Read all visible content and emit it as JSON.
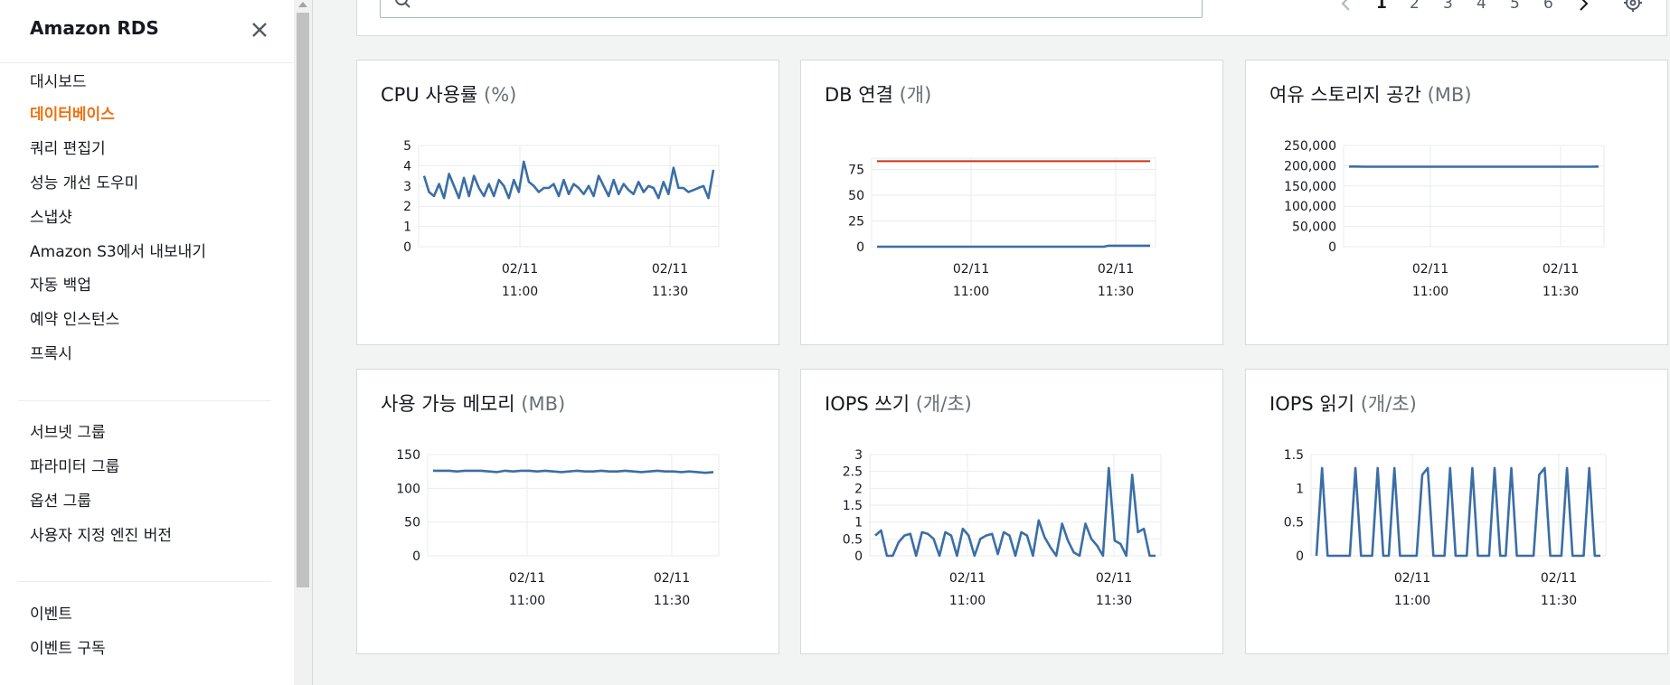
{
  "sidebar": {
    "title": "Amazon RDS",
    "close_icon": "close-icon",
    "groups": [
      [
        {
          "label": "대시보드",
          "active": false
        },
        {
          "label": "데이터베이스",
          "active": true
        },
        {
          "label": "쿼리 편집기",
          "active": false
        },
        {
          "label": "성능 개선 도우미",
          "active": false
        },
        {
          "label": "스냅샷",
          "active": false
        },
        {
          "label": "Amazon S3에서 내보내기",
          "active": false
        },
        {
          "label": "자동 백업",
          "active": false
        },
        {
          "label": "예약 인스턴스",
          "active": false
        },
        {
          "label": "프록시",
          "active": false
        }
      ],
      [
        {
          "label": "서브넷 그룹",
          "active": false
        },
        {
          "label": "파라미터 그룹",
          "active": false
        },
        {
          "label": "옵션 그룹",
          "active": false
        },
        {
          "label": "사용자 지정 엔진 버전",
          "active": false
        }
      ],
      [
        {
          "label": "이벤트",
          "active": false
        },
        {
          "label": "이벤트 구독",
          "active": false
        }
      ]
    ]
  },
  "toolbar": {
    "search_value": "",
    "search_icon": "search-icon",
    "pages": [
      "1",
      "2",
      "3",
      "4",
      "5",
      "6"
    ],
    "current_page": "1",
    "settings_icon": "gear-icon"
  },
  "colors": {
    "accent": "#ec7211",
    "series": "#3b6ea5",
    "threshold": "#d13212",
    "grid": "#eaeded"
  },
  "charts": [
    {
      "title": "CPU 사용률",
      "unit": "(%)",
      "chart_data": {
        "type": "line",
        "y_ticks": [
          "5",
          "4",
          "3",
          "2",
          "1",
          "0"
        ],
        "ylim": [
          0,
          5
        ],
        "x_ticks": [
          {
            "date": "02/11",
            "time": "11:00"
          },
          {
            "date": "02/11",
            "time": "11:30"
          }
        ],
        "series": [
          {
            "values": [
              3.5,
              2.7,
              2.5,
              3.1,
              2.4,
              3.6,
              3.0,
              2.4,
              3.4,
              2.5,
              3.5,
              2.9,
              2.5,
              3.1,
              2.5,
              3.3,
              3.0,
              2.4,
              3.3,
              2.7,
              4.2,
              3.2,
              3.0,
              2.7,
              2.9,
              2.9,
              3.1,
              2.5,
              3.3,
              2.6,
              3.1,
              2.9,
              2.6,
              3.0,
              2.5,
              3.5,
              3.0,
              2.5,
              3.3,
              2.6,
              3.1,
              2.8,
              2.6,
              3.2,
              2.7,
              3.0,
              2.9,
              2.4,
              3.2,
              2.6,
              3.9,
              2.9,
              2.9,
              2.7,
              2.8,
              2.9,
              3.0,
              2.4,
              3.8
            ]
          }
        ]
      }
    },
    {
      "title": "DB 연결",
      "unit": "(개)",
      "chart_data": {
        "type": "line",
        "y_ticks": [
          "75",
          "50",
          "25",
          "0"
        ],
        "ylim": [
          0,
          86
        ],
        "x_ticks": [
          {
            "date": "02/11",
            "time": "11:00"
          },
          {
            "date": "02/11",
            "time": "11:30"
          }
        ],
        "series": [
          {
            "values": [
              0,
              0,
              0,
              0,
              0,
              0,
              0,
              0,
              0,
              0,
              0,
              0,
              0,
              0,
              0,
              0,
              0,
              0,
              0,
              0,
              0,
              0,
              0,
              0,
              0,
              0,
              0,
              0,
              0,
              0,
              0,
              0,
              0,
              0,
              0,
              0,
              0,
              0,
              0,
              0,
              0,
              0,
              0,
              0,
              0,
              0,
              0,
              0,
              0,
              0,
              1,
              1,
              1,
              1,
              1,
              1,
              1,
              1,
              1,
              1
            ]
          },
          {
            "values": [
              83,
              83
            ],
            "threshold": true
          }
        ]
      }
    },
    {
      "title": "여유 스토리지 공간",
      "unit": "(MB)",
      "chart_data": {
        "type": "line",
        "y_ticks": [
          "250,000",
          "200,000",
          "150,000",
          "100,000",
          "50,000",
          "0"
        ],
        "ylim": [
          0,
          250000
        ],
        "x_ticks": [
          {
            "date": "02/11",
            "time": "11:00"
          },
          {
            "date": "02/11",
            "time": "11:30"
          }
        ],
        "series": [
          {
            "values": [
              198000,
              198000,
              197500,
              197500,
              197500,
              197500,
              197500,
              197500,
              197500,
              197500,
              197500,
              197500,
              197500,
              197500,
              197500,
              197500,
              197500,
              197500,
              197500,
              197500,
              197500,
              197500,
              197500,
              197500,
              197500,
              197500,
              197500,
              197500,
              197500,
              197500,
              197500,
              198000
            ]
          }
        ]
      }
    },
    {
      "title": "사용 가능 메모리",
      "unit": "(MB)",
      "chart_data": {
        "type": "line",
        "y_ticks": [
          "150",
          "100",
          "50",
          "0"
        ],
        "ylim": [
          0,
          150
        ],
        "x_ticks": [
          {
            "date": "02/11",
            "time": "11:00"
          },
          {
            "date": "02/11",
            "time": "11:30"
          }
        ],
        "series": [
          {
            "values": [
              126,
              126,
              126,
              125,
              126,
              126,
              126,
              125,
              124,
              126,
              125,
              126,
              126,
              125,
              126,
              125,
              124,
              125,
              126,
              125,
              125,
              126,
              125,
              125,
              126,
              125,
              124,
              125,
              126,
              125,
              125,
              124,
              125,
              124,
              123,
              124
            ]
          }
        ]
      }
    },
    {
      "title": "IOPS 쓰기",
      "unit": "(개/초)",
      "chart_data": {
        "type": "line",
        "y_ticks": [
          "3",
          "2.5",
          "2",
          "1.5",
          "1",
          "0.5",
          "0"
        ],
        "ylim": [
          0,
          3
        ],
        "x_ticks": [
          {
            "date": "02/11",
            "time": "11:00"
          },
          {
            "date": "02/11",
            "time": "11:30"
          }
        ],
        "series": [
          {
            "values": [
              0.6,
              0.75,
              0,
              0,
              0.4,
              0.6,
              0.65,
              0,
              0.7,
              0.65,
              0.5,
              0,
              0.7,
              0.6,
              0,
              0.8,
              0.6,
              0,
              0.5,
              0.6,
              0.65,
              0.05,
              0.7,
              0.6,
              0,
              0.7,
              0.6,
              0,
              1.05,
              0.55,
              0.25,
              0,
              0.95,
              0.45,
              0.1,
              0,
              0.95,
              0.5,
              0.3,
              0,
              2.6,
              0.45,
              0.35,
              0,
              2.4,
              0.7,
              0.8,
              0,
              0
            ]
          }
        ]
      }
    },
    {
      "title": "IOPS 읽기",
      "unit": "(개/초)",
      "chart_data": {
        "type": "line",
        "y_ticks": [
          "1.5",
          "1",
          "0.5",
          "0"
        ],
        "ylim": [
          0,
          1.5
        ],
        "x_ticks": [
          {
            "date": "02/11",
            "time": "11:00"
          },
          {
            "date": "02/11",
            "time": "11:30"
          }
        ],
        "series": [
          {
            "values": [
              0,
              1.3,
              0,
              0,
              0,
              0,
              0,
              1.3,
              0,
              0,
              0,
              1.3,
              0,
              0,
              1.3,
              0,
              0,
              0,
              0,
              1.2,
              1.3,
              0,
              0,
              0,
              1.3,
              0,
              0,
              0,
              1.3,
              0,
              0,
              0,
              1.3,
              0,
              0,
              1.3,
              0,
              0,
              0,
              0,
              1.2,
              1.3,
              0,
              0,
              0,
              1.3,
              0,
              0,
              0,
              1.3,
              0,
              0
            ]
          }
        ]
      }
    }
  ]
}
